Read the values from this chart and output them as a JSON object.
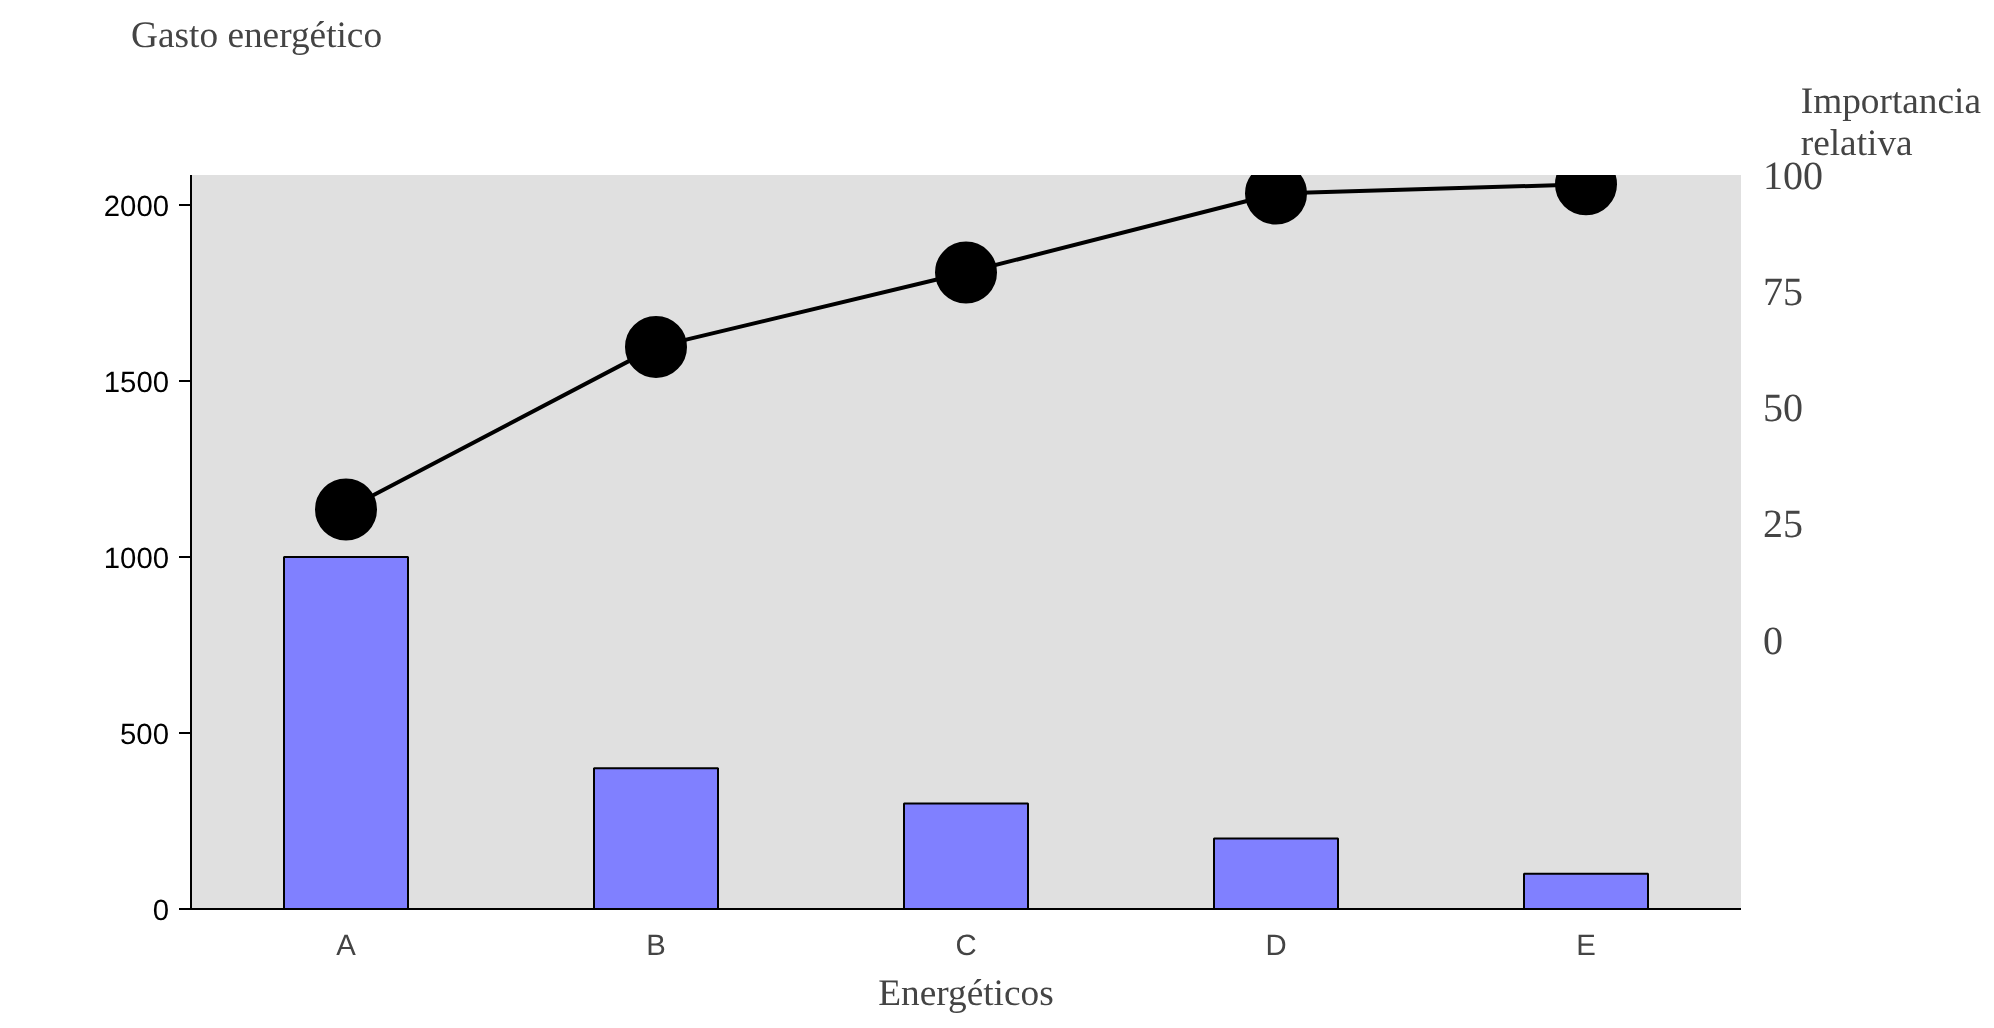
{
  "chart_data": {
    "type": "bar",
    "ylabel": "Gasto energético",
    "xlabel": "Energéticos",
    "y2label": "Importancia relativa",
    "categories": [
      "A",
      "B",
      "C",
      "D",
      "E"
    ],
    "series": [
      {
        "color": "#8080ff",
        "values": [
          1000,
          400,
          300,
          200,
          100
        ]
      },
      {
        "type": "line",
        "axis": "y2",
        "color": "#000000",
        "values": [
          28,
          63,
          79,
          96,
          98
        ],
        "marker": "circle"
      }
    ],
    "ylim": [
      0,
      2085
    ],
    "yticks": [
      0,
      500,
      1000,
      1500,
      2000
    ],
    "y2lim": [
      -58,
      100
    ],
    "y2ticks": [
      0,
      25,
      50,
      75,
      100
    ]
  }
}
